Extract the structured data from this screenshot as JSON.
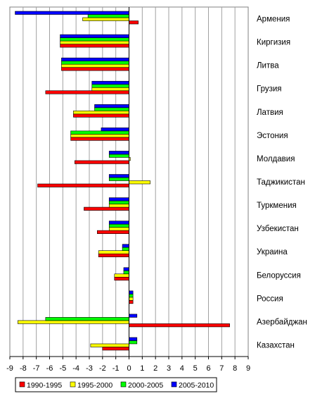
{
  "chart_data": {
    "type": "bar",
    "orientation": "horizontal",
    "categories": [
      "Армения",
      "Киргизия",
      "Литва",
      "Грузия",
      "Латвия",
      "Эстония",
      "Молдавия",
      "Таджикистан",
      "Туркмения",
      "Узбекистан",
      "Украина",
      "Белоруссия",
      "Россия",
      "Азербайджан",
      "Казахстан"
    ],
    "series": [
      {
        "name": "1990-1995",
        "color": "#ff0000",
        "values": [
          0.7,
          -5.2,
          -5.1,
          -6.3,
          -4.2,
          -4.4,
          -4.1,
          -6.9,
          -3.4,
          -2.4,
          -2.3,
          -1.1,
          0.3,
          7.6,
          -2.0
        ]
      },
      {
        "name": "1995-2000",
        "color": "#ffff00",
        "values": [
          -3.5,
          -5.2,
          -5.1,
          -2.8,
          -4.2,
          -4.4,
          0.1,
          1.6,
          -1.5,
          -1.5,
          -2.3,
          -1.1,
          0.3,
          -8.4,
          -2.9
        ]
      },
      {
        "name": "2000-2005",
        "color": "#00ff00",
        "values": [
          -3.1,
          -5.2,
          -5.1,
          -2.8,
          -2.6,
          -4.4,
          -1.5,
          -1.5,
          -1.5,
          -1.5,
          -0.5,
          -0.4,
          0.3,
          -6.3,
          0.6
        ]
      },
      {
        "name": "2005-2010",
        "color": "#0000ff",
        "values": [
          -8.6,
          -5.2,
          -5.1,
          -2.8,
          -2.6,
          -2.1,
          -1.5,
          -1.5,
          -1.5,
          -1.5,
          -0.5,
          -0.4,
          0.3,
          0.6,
          0.6
        ]
      }
    ],
    "xlim": [
      -9,
      9
    ],
    "xticks": [
      "-9",
      "-8",
      "-7",
      "-6",
      "-5",
      "-4",
      "-3",
      "-2",
      "-1",
      "0",
      "1",
      "2",
      "3",
      "4",
      "5",
      "6",
      "7",
      "8",
      "9"
    ],
    "grid": "vertical",
    "legend_position": "bottom",
    "category_label_position": "right"
  }
}
